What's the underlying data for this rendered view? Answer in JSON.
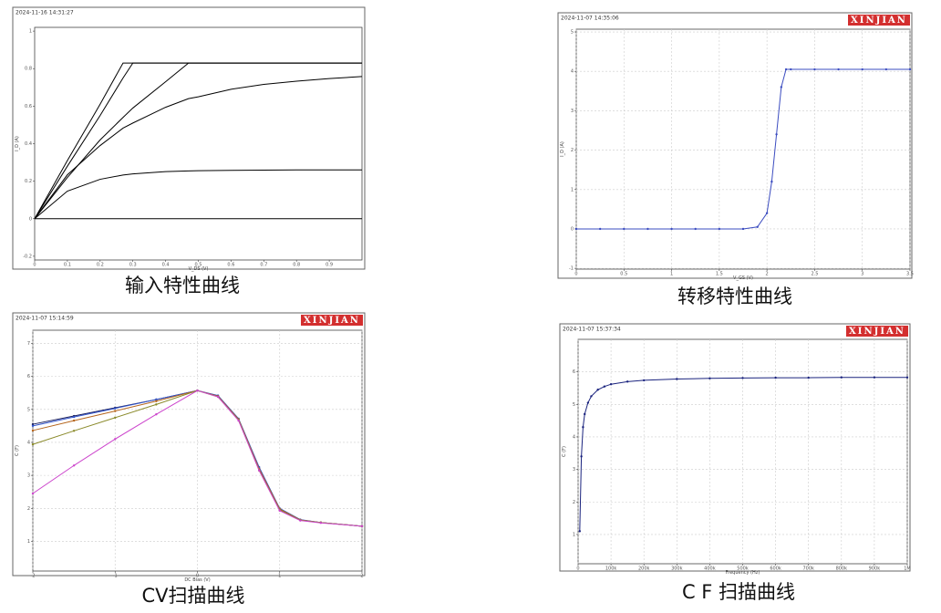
{
  "chart_data": [
    {
      "type": "line",
      "caption": "输入特性曲线",
      "timestamp": "2024-11-16 14:31:27",
      "xlabel": "V_DS (V)",
      "ylabel": "I_D (A)",
      "x": [
        0,
        0.1,
        0.2,
        0.27,
        0.3,
        0.4,
        0.47,
        0.5,
        0.6,
        0.7,
        0.8,
        0.9,
        1.0
      ],
      "xlim": [
        0,
        1
      ],
      "xticks": [
        0,
        0.1,
        0.2,
        0.3,
        0.4,
        0.5,
        0.6,
        0.7,
        0.8,
        0.9
      ],
      "ylim": [
        -0.22,
        1.02
      ],
      "yticks": [
        -0.2,
        0,
        0.2,
        0.4,
        0.6,
        0.8,
        1.0
      ],
      "grid": false,
      "markers": false,
      "series": [
        {
          "color": "#000000",
          "values": [
            0,
            0.31,
            0.61,
            0.83,
            0.83,
            0.83,
            0.83,
            0.83,
            0.83,
            0.83,
            0.83,
            0.83,
            0.83
          ]
        },
        {
          "color": "#000000",
          "values": [
            0,
            0.28,
            0.55,
            0.75,
            0.83,
            0.83,
            0.83,
            0.83,
            0.83,
            0.83,
            0.83,
            0.83,
            0.83
          ]
        },
        {
          "color": "#000000",
          "values": [
            0,
            0.22,
            0.42,
            0.54,
            0.59,
            0.73,
            0.83,
            0.83,
            0.83,
            0.83,
            0.83,
            0.83,
            0.83
          ]
        },
        {
          "color": "#000000",
          "values": [
            0,
            0.234,
            0.39,
            0.483,
            0.51,
            0.594,
            0.64,
            0.65,
            0.69,
            0.716,
            0.733,
            0.747,
            0.758
          ]
        },
        {
          "color": "#000000",
          "values": [
            0,
            0.147,
            0.21,
            0.233,
            0.239,
            0.251,
            0.255,
            0.256,
            0.258,
            0.259,
            0.26,
            0.26,
            0.26
          ]
        },
        {
          "color": "#000000",
          "values": [
            0,
            0,
            0,
            0,
            0,
            0,
            0,
            0,
            0,
            0,
            0,
            0,
            0
          ]
        }
      ]
    },
    {
      "type": "line",
      "caption": "转移特性曲线",
      "timestamp": "2024-11-07 14:35:06",
      "brand": "XINJIAN",
      "xlabel": "V_GS (V)",
      "ylabel": "I_D (A)",
      "x": [
        0,
        0.25,
        0.5,
        0.75,
        1.0,
        1.25,
        1.5,
        1.75,
        1.9,
        2.0,
        2.05,
        2.1,
        2.15,
        2.2,
        2.25,
        2.5,
        2.75,
        3.0,
        3.25,
        3.5
      ],
      "xlim": [
        0,
        3.5
      ],
      "xticks": [
        0,
        0.5,
        1,
        1.5,
        2,
        2.5,
        3,
        3.5
      ],
      "ylim": [
        -1.02,
        5.07
      ],
      "yticks": [
        -1,
        0,
        1,
        2,
        3,
        4,
        5
      ],
      "grid": true,
      "markers": true,
      "series": [
        {
          "color": "#3b4cc0",
          "values": [
            0,
            0,
            0,
            0,
            0,
            0,
            0,
            0,
            0.05,
            0.4,
            1.2,
            2.4,
            3.6,
            4.05,
            4.05,
            4.05,
            4.05,
            4.05,
            4.05,
            4.05
          ]
        }
      ]
    },
    {
      "type": "line",
      "caption": "CV扫描曲线",
      "timestamp": "2024-11-07 15:14:59",
      "brand": "XINJIAN",
      "xlabel": "DC Bias (V)",
      "ylabel": "C (F)",
      "x": [
        -2,
        -1.5,
        -1,
        -0.5,
        0,
        0.25,
        0.5,
        0.75,
        1,
        1.25,
        1.5,
        2
      ],
      "xlim": [
        -2,
        2
      ],
      "xticks": [
        -2,
        -1,
        0,
        1,
        2
      ],
      "ylim": [
        0.1,
        7.4
      ],
      "yticks": [
        1,
        2,
        3,
        4,
        5,
        6,
        7
      ],
      "grid": true,
      "markers": true,
      "series": [
        {
          "color": "#1a1f5c",
          "values": [
            4.55,
            4.8,
            5.05,
            5.3,
            5.57,
            5.4,
            4.7,
            3.2,
            1.95,
            1.65,
            1.57,
            1.46
          ]
        },
        {
          "color": "#3355cc",
          "values": [
            4.5,
            4.77,
            5.03,
            5.3,
            5.57,
            5.42,
            4.72,
            3.25,
            2.0,
            1.66,
            1.57,
            1.46
          ]
        },
        {
          "color": "#b5651d",
          "values": [
            4.36,
            4.66,
            4.95,
            5.25,
            5.57,
            5.4,
            4.7,
            3.2,
            1.98,
            1.65,
            1.57,
            1.46
          ]
        },
        {
          "color": "#8a8a2a",
          "values": [
            3.94,
            4.35,
            4.75,
            5.15,
            5.57,
            5.38,
            4.68,
            3.15,
            1.95,
            1.64,
            1.57,
            1.46
          ]
        },
        {
          "color": "#cc44cc",
          "values": [
            2.45,
            3.3,
            4.1,
            4.85,
            5.57,
            5.38,
            4.66,
            3.15,
            1.93,
            1.63,
            1.56,
            1.46
          ]
        }
      ]
    },
    {
      "type": "line",
      "caption": "C F  扫描曲线",
      "timestamp": "2024-11-07 15:37:34",
      "brand": "XINJIAN",
      "xlabel": "Frequency (Hz)",
      "ylabel": "C (F)",
      "x": [
        5000,
        10000,
        15000,
        20000,
        30000,
        40000,
        60000,
        80000,
        100000,
        150000,
        200000,
        300000,
        400000,
        500000,
        600000,
        700000,
        800000,
        900000,
        1000000
      ],
      "xlim": [
        0,
        1000000
      ],
      "xticks": [
        0,
        {
          "value": 100000,
          "label": "100k"
        },
        {
          "value": 200000,
          "label": "200k"
        },
        {
          "value": 300000,
          "label": "300k"
        },
        {
          "value": 400000,
          "label": "400k"
        },
        {
          "value": 500000,
          "label": "500k"
        },
        {
          "value": 600000,
          "label": "600k"
        },
        {
          "value": 700000,
          "label": "700k"
        },
        {
          "value": 800000,
          "label": "800k"
        },
        {
          "value": 900000,
          "label": "900k"
        },
        {
          "value": 1000000,
          "label": "1M"
        }
      ],
      "ylim": [
        0.1,
        7
      ],
      "yticks": [
        1,
        2,
        3,
        4,
        5,
        6
      ],
      "grid": true,
      "markers": true,
      "series": [
        {
          "color": "#1a237e",
          "values": [
            1.1,
            3.4,
            4.3,
            4.7,
            5.05,
            5.25,
            5.45,
            5.55,
            5.62,
            5.7,
            5.74,
            5.78,
            5.8,
            5.81,
            5.82,
            5.82,
            5.83,
            5.83,
            5.83
          ]
        }
      ]
    }
  ]
}
